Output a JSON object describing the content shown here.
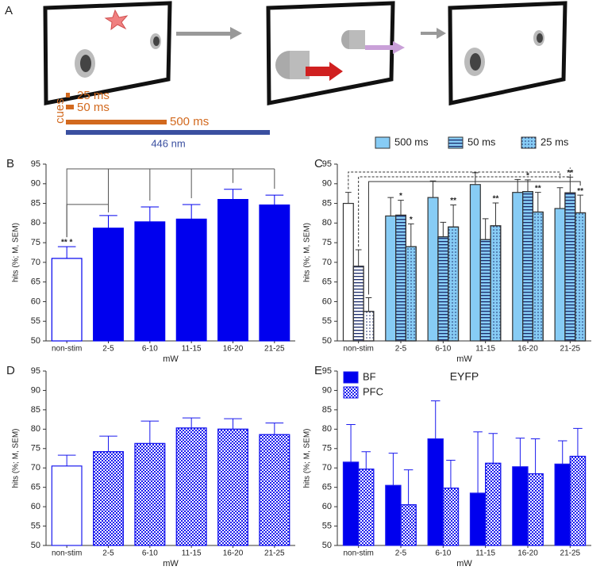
{
  "panel_a": {
    "label": "A",
    "cues": "cues",
    "durations": [
      "25 ms",
      "50 ms",
      "500 ms"
    ],
    "laser": "446 nm"
  },
  "chart_data": [
    {
      "type": "bar",
      "panel": "B",
      "ylabel": "hits (%; M, SEM)",
      "xlabel": "mW",
      "categories": [
        "non-stim",
        "2-5",
        "6-10",
        "11-15",
        "16-20",
        "21-25"
      ],
      "values": [
        71,
        78.7,
        80.3,
        81,
        86,
        84.6
      ],
      "errors": [
        3,
        3.2,
        3.8,
        3.7,
        2.6,
        2.5
      ],
      "annotations": [
        "** *",
        null,
        null,
        null,
        null,
        null
      ],
      "color": "#0000ee",
      "control_fill": "#ffffff",
      "edge_color": "#0000ee",
      "ylim": [
        50,
        95
      ],
      "yticks": [
        50,
        55,
        60,
        65,
        70,
        75,
        80,
        85,
        90,
        95
      ]
    },
    {
      "type": "bar",
      "panel": "C",
      "ylabel": "hits (%; M, SEM)",
      "xlabel": "mW",
      "categories": [
        "non-stim",
        "2-5",
        "6-10",
        "11-15",
        "16-20",
        "21-25"
      ],
      "series": [
        {
          "name": "500 ms",
          "color": "#87ccf5",
          "values": [
            85,
            81.8,
            86.5,
            89.8,
            87.8,
            83.7
          ],
          "errors": [
            2.8,
            4.7,
            4.2,
            3,
            3.3,
            5.3
          ],
          "annotations": [
            null,
            null,
            null,
            null,
            null,
            null
          ]
        },
        {
          "name": "50 ms",
          "color": "#87ccf5",
          "pattern": "hstripes",
          "values": [
            69,
            82,
            76.5,
            75.8,
            88,
            87.7
          ],
          "errors": [
            4.2,
            3.8,
            3.7,
            5.3,
            3,
            4
          ],
          "annotations": [
            null,
            "*",
            null,
            null,
            "*",
            "**"
          ]
        },
        {
          "name": "25 ms",
          "color": "#87ccf5",
          "pattern": "dots",
          "values": [
            57.5,
            74,
            79,
            79.3,
            82.8,
            82.6
          ],
          "errors": [
            3.5,
            5.8,
            5.6,
            5.8,
            5,
            4.5
          ],
          "annotations": [
            null,
            "*",
            "**",
            "**",
            "**",
            "**"
          ]
        }
      ],
      "control_fill": "#ffffff",
      "control_patterned": true,
      "pattern_color": "#1a2a6a",
      "edge_color": "#333333",
      "legend": "top",
      "ylim": [
        50,
        95
      ],
      "yticks": [
        50,
        55,
        60,
        65,
        70,
        75,
        80,
        85,
        90,
        95
      ]
    },
    {
      "type": "bar",
      "panel": "D",
      "ylabel": "hits (%; M, SEM)",
      "xlabel": "mW",
      "categories": [
        "non-stim",
        "2-5",
        "6-10",
        "11-15",
        "16-20",
        "21-25"
      ],
      "values": [
        70.5,
        74.2,
        76.3,
        80.3,
        80,
        78.6
      ],
      "errors": [
        2.8,
        4,
        5.8,
        2.6,
        2.7,
        3
      ],
      "color": "#ffffff",
      "pattern": "checker",
      "pattern_color": "#1a1aee",
      "control_fill": "#ffffff",
      "edge_color": "#1a1aee",
      "ylim": [
        50,
        95
      ],
      "yticks": [
        50,
        55,
        60,
        65,
        70,
        75,
        80,
        85,
        90,
        95
      ]
    },
    {
      "type": "bar",
      "panel": "E",
      "title": "EYFP",
      "ylabel": "hits (%; M, SEM)",
      "xlabel": "mW",
      "categories": [
        "non-stim",
        "2-5",
        "6-10",
        "11-15",
        "16-20",
        "21-25"
      ],
      "series": [
        {
          "name": "BF",
          "color": "#0000ee",
          "values": [
            71.5,
            65.5,
            77.5,
            63.5,
            70.3,
            71
          ],
          "errors": [
            9.7,
            8.3,
            9.8,
            15.8,
            7.4,
            6
          ]
        },
        {
          "name": "PFC",
          "color": "#ffffff",
          "pattern": "checker",
          "values": [
            69.7,
            60.5,
            64.8,
            71.2,
            68.5,
            73
          ],
          "errors": [
            4.5,
            9,
            7.2,
            7.7,
            9,
            7.2
          ]
        }
      ],
      "pattern_color": "#1a1aee",
      "edge_color": "#1a1aee",
      "legend": "upper left",
      "ylim": [
        50,
        95
      ],
      "yticks": [
        50,
        55,
        60,
        65,
        70,
        75,
        80,
        85,
        90,
        95
      ]
    }
  ]
}
